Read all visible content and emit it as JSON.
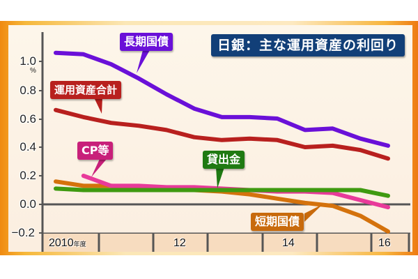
{
  "title": "日銀：主な運用資産の利回り",
  "y_axis": {
    "unit": "%",
    "ticks": [
      "1.0",
      "0.8",
      "0.6",
      "0.4",
      "0.2",
      "0.0",
      "−0.2"
    ]
  },
  "x_axis": {
    "labels": [
      {
        "text": "2010",
        "suffix": "年度"
      },
      {
        "text": "12",
        "suffix": ""
      },
      {
        "text": "14",
        "suffix": ""
      },
      {
        "text": "16",
        "suffix": ""
      }
    ]
  },
  "callouts": {
    "long_jgb": "長期国債",
    "total": "運用資産合計",
    "cp": "CP等",
    "loans": "貸出金",
    "short_jgb": "短期国債"
  },
  "colors": {
    "long_jgb": "#6a10d8",
    "total": "#b8201e",
    "cp": "#e83a9a",
    "loans": "#3f9a10",
    "short_jgb": "#d4720c",
    "title_bg": "#123f78"
  },
  "chart_data": {
    "type": "line",
    "title": "日銀：主な運用資産の利回り",
    "xlabel": "年度",
    "ylabel": "%",
    "ylim": [
      -0.2,
      1.1
    ],
    "x": [
      "2010H1",
      "2010H2",
      "2011H1",
      "2011H2",
      "2012H1",
      "2012H2",
      "2013H1",
      "2013H2",
      "2014H1",
      "2014H2",
      "2015H1",
      "2015H2",
      "2016H1"
    ],
    "x_tick_labels": [
      "2010年度",
      "12",
      "14",
      "16"
    ],
    "series": [
      {
        "name": "長期国債",
        "values": [
          1.06,
          1.05,
          0.98,
          0.88,
          0.77,
          0.67,
          0.61,
          0.61,
          0.6,
          0.52,
          0.53,
          0.46,
          0.41
        ]
      },
      {
        "name": "運用資産合計",
        "values": [
          0.66,
          0.61,
          0.57,
          0.55,
          0.52,
          0.47,
          0.45,
          0.46,
          0.45,
          0.4,
          0.41,
          0.38,
          0.32
        ]
      },
      {
        "name": "CP等",
        "values": [
          null,
          0.2,
          0.13,
          0.13,
          0.12,
          0.12,
          0.11,
          0.1,
          0.09,
          0.09,
          0.08,
          0.03,
          -0.02
        ]
      },
      {
        "name": "貸出金",
        "values": [
          0.11,
          0.1,
          0.1,
          0.1,
          0.1,
          0.1,
          0.1,
          0.1,
          0.1,
          0.1,
          0.1,
          0.1,
          0.06
        ]
      },
      {
        "name": "短期国債",
        "values": [
          0.16,
          0.13,
          0.13,
          0.12,
          0.11,
          0.1,
          0.09,
          0.07,
          0.04,
          0.01,
          -0.01,
          -0.08,
          -0.19
        ]
      }
    ],
    "grid": false,
    "legend": "callouts"
  }
}
